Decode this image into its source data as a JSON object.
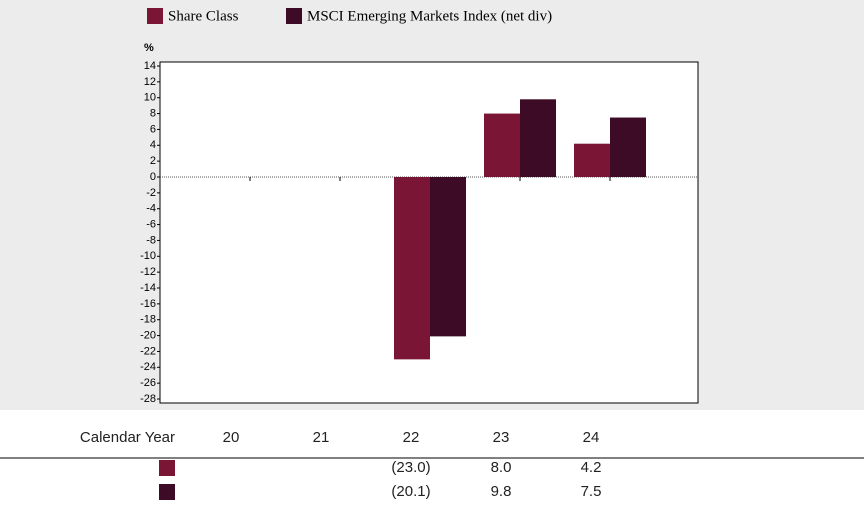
{
  "chart_data": {
    "type": "bar",
    "y_label": "%",
    "categories": [
      "20",
      "21",
      "22",
      "23",
      "24"
    ],
    "series": [
      {
        "name": "Share Class",
        "color": "#7a1535",
        "values": [
          null,
          null,
          -23.0,
          8.0,
          4.2
        ],
        "value_labels": [
          null,
          null,
          "(23.0)",
          "8.0",
          "4.2"
        ]
      },
      {
        "name": "MSCI Emerging Markets Index (net div)",
        "color": "#3e0b26",
        "values": [
          null,
          null,
          -20.1,
          9.8,
          7.5
        ],
        "value_labels": [
          null,
          null,
          "(20.1)",
          "9.8",
          "7.5"
        ]
      }
    ],
    "ylim": [
      -28,
      14
    ],
    "yticks": [
      14,
      12,
      10,
      8,
      6,
      4,
      2,
      0,
      -2,
      -4,
      -6,
      -8,
      -10,
      -12,
      -14,
      -16,
      -18,
      -20,
      -22,
      -24,
      -26,
      -28
    ],
    "grid": false,
    "table_header": "Calendar Year"
  }
}
